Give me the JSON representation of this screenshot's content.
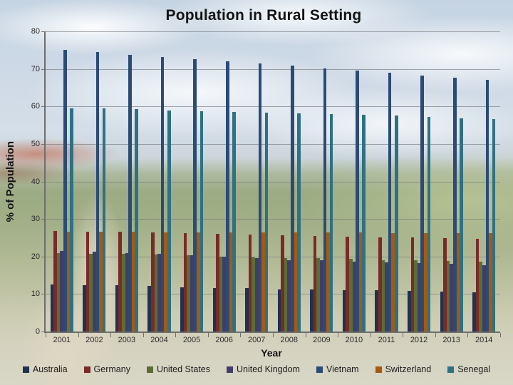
{
  "chart_data": {
    "type": "bar",
    "title": "Population in Rural Setting",
    "xlabel": "Year",
    "ylabel": "% of Population",
    "ylim": [
      0,
      80
    ],
    "yticks": [
      0,
      10,
      20,
      30,
      40,
      50,
      60,
      70,
      80
    ],
    "grid": true,
    "legend_position": "bottom",
    "categories": [
      "2001",
      "2002",
      "2003",
      "2004",
      "2005",
      "2006",
      "2007",
      "2008",
      "2009",
      "2010",
      "2011",
      "2012",
      "2013",
      "2014"
    ],
    "series": [
      {
        "name": "Australia",
        "color": "#20324E",
        "values": [
          12.5,
          12.4,
          12.3,
          12.1,
          11.8,
          11.6,
          11.5,
          11.3,
          11.2,
          11.1,
          11.0,
          10.8,
          10.6,
          10.5
        ]
      },
      {
        "name": "Germany",
        "color": "#7A2A28",
        "values": [
          26.8,
          26.7,
          26.6,
          26.4,
          26.2,
          26.0,
          25.8,
          25.6,
          25.4,
          25.2,
          25.1,
          25.0,
          24.9,
          24.8
        ]
      },
      {
        "name": "United States",
        "color": "#5A6E33",
        "values": [
          20.9,
          20.8,
          20.7,
          20.5,
          20.3,
          20.0,
          19.8,
          19.6,
          19.5,
          19.3,
          19.1,
          19.0,
          18.8,
          18.7
        ]
      },
      {
        "name": "United Kingdom",
        "color": "#413D66",
        "values": [
          21.4,
          21.2,
          21.0,
          20.7,
          20.3,
          19.9,
          19.5,
          19.1,
          19.0,
          18.7,
          18.5,
          18.3,
          18.1,
          17.7
        ]
      },
      {
        "name": "Vietnam",
        "color": "#2C4B74",
        "values": [
          75.1,
          74.4,
          73.8,
          73.2,
          72.6,
          72.1,
          71.5,
          70.8,
          70.2,
          69.6,
          68.9,
          68.3,
          67.6,
          67.0
        ]
      },
      {
        "name": "Switzerland",
        "color": "#A65A11",
        "values": [
          26.6,
          26.6,
          26.6,
          26.5,
          26.5,
          26.5,
          26.4,
          26.4,
          26.4,
          26.4,
          26.3,
          26.3,
          26.3,
          26.3
        ]
      },
      {
        "name": "Senegal",
        "color": "#2E7183",
        "values": [
          59.5,
          59.4,
          59.2,
          59.0,
          58.8,
          58.5,
          58.3,
          58.1,
          57.9,
          57.7,
          57.5,
          57.2,
          56.9,
          56.6
        ]
      }
    ]
  }
}
